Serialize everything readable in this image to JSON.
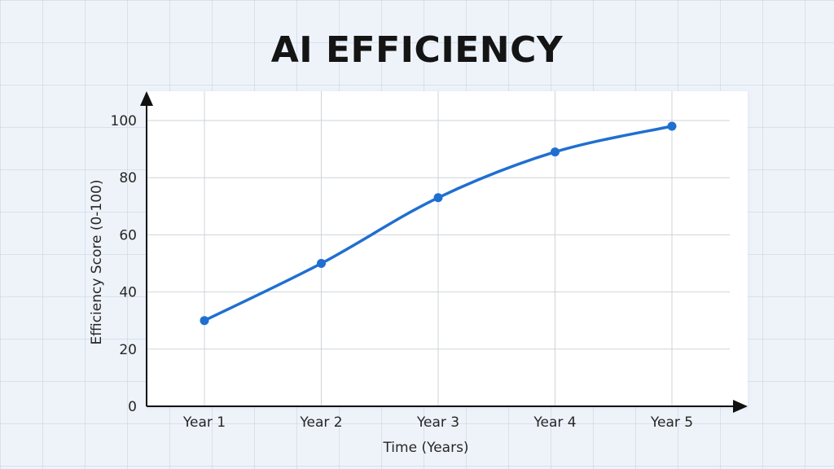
{
  "chart_data": {
    "type": "line",
    "title": "AI EFFICIENCY",
    "xlabel": "Time (Years)",
    "ylabel": "Efficiency Score (0-100)",
    "categories": [
      "Year 1",
      "Year 2",
      "Year 3",
      "Year 4",
      "Year 5"
    ],
    "series": [
      {
        "values": [
          30,
          50,
          73,
          89,
          98
        ]
      }
    ],
    "ylim": [
      0,
      100
    ],
    "yticks": [
      0,
      20,
      40,
      60,
      80,
      100
    ],
    "grid": true,
    "line_color": "#1f6fd1",
    "point_color": "#1f6fd1"
  }
}
